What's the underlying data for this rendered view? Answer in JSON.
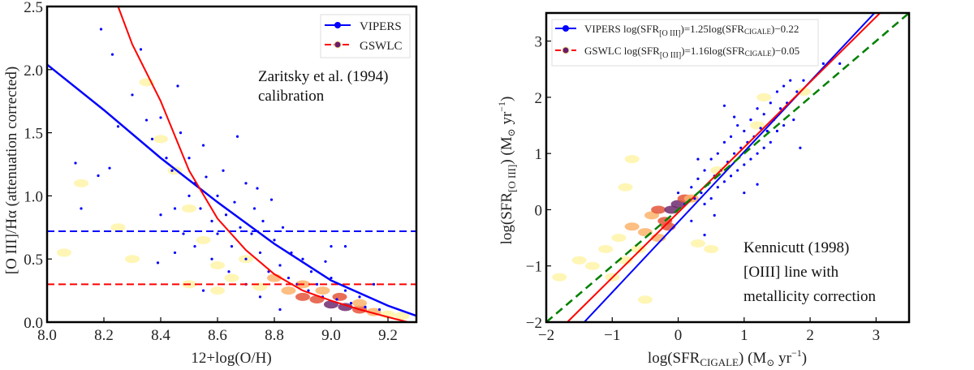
{
  "chart_data": [
    {
      "type": "scatter",
      "xlabel": "12+log(O/H)",
      "ylabel": "[O III]/Hα (attenuation corrected)",
      "xlim": [
        8.0,
        9.3
      ],
      "ylim": [
        0.0,
        2.5
      ],
      "xticks": [
        "8.0",
        "8.2",
        "8.4",
        "8.6",
        "8.8",
        "9.0",
        "9.2"
      ],
      "yticks": [
        "0.0",
        "0.5",
        "1.0",
        "1.5",
        "2.0",
        "2.5"
      ],
      "grid": false,
      "legend_position": "top-right",
      "annotation": [
        "Zaritsky et al. (1994)",
        "calibration"
      ],
      "series": [
        {
          "name": "VIPERS",
          "color": "#0000ff",
          "kind": "points",
          "points": [
            [
              8.19,
              2.32
            ],
            [
              8.23,
              2.12
            ],
            [
              8.33,
              2.16
            ],
            [
              8.1,
              1.26
            ],
            [
              8.12,
              0.9
            ],
            [
              8.18,
              1.16
            ],
            [
              8.22,
              1.22
            ],
            [
              8.25,
              1.55
            ],
            [
              8.3,
              1.8
            ],
            [
              8.35,
              1.6
            ],
            [
              8.37,
              1.45
            ],
            [
              8.4,
              1.62
            ],
            [
              8.42,
              1.3
            ],
            [
              8.44,
              1.2
            ],
            [
              8.46,
              1.87
            ],
            [
              8.47,
              1.5
            ],
            [
              8.5,
              1.0
            ],
            [
              8.5,
              1.3
            ],
            [
              8.52,
              1.1
            ],
            [
              8.54,
              0.9
            ],
            [
              8.55,
              1.4
            ],
            [
              8.56,
              1.15
            ],
            [
              8.58,
              0.8
            ],
            [
              8.6,
              1.0
            ],
            [
              8.6,
              0.7
            ],
            [
              8.62,
              1.2
            ],
            [
              8.63,
              0.85
            ],
            [
              8.65,
              0.6
            ],
            [
              8.66,
              0.95
            ],
            [
              8.68,
              0.75
            ],
            [
              8.7,
              1.1
            ],
            [
              8.7,
              0.5
            ],
            [
              8.72,
              0.7
            ],
            [
              8.73,
              0.9
            ],
            [
              8.75,
              0.55
            ],
            [
              8.76,
              0.8
            ],
            [
              8.78,
              0.4
            ],
            [
              8.8,
              0.65
            ],
            [
              8.82,
              0.45
            ],
            [
              8.83,
              0.75
            ],
            [
              8.85,
              0.35
            ],
            [
              8.86,
              0.55
            ],
            [
              8.88,
              0.3
            ],
            [
              8.9,
              0.5
            ],
            [
              8.92,
              0.25
            ],
            [
              8.93,
              0.4
            ],
            [
              8.95,
              0.3
            ],
            [
              8.97,
              0.2
            ],
            [
              9.0,
              0.35
            ],
            [
              9.02,
              0.18
            ],
            [
              9.05,
              0.25
            ],
            [
              9.07,
              0.15
            ],
            [
              9.1,
              0.2
            ],
            [
              9.12,
              0.12
            ],
            [
              9.15,
              0.3
            ],
            [
              9.17,
              0.1
            ],
            [
              8.45,
              0.9
            ],
            [
              8.48,
              0.7
            ],
            [
              8.52,
              0.6
            ],
            [
              8.4,
              0.85
            ],
            [
              8.58,
              0.5
            ],
            [
              8.64,
              0.4
            ],
            [
              8.7,
              0.3
            ],
            [
              8.55,
              0.25
            ],
            [
              8.75,
              0.2
            ],
            [
              8.45,
              0.55
            ],
            [
              8.39,
              0.47
            ],
            [
              8.82,
              0.1
            ],
            [
              9.0,
              0.6
            ],
            [
              8.67,
              1.47
            ],
            [
              8.74,
              1.06
            ],
            [
              8.79,
              0.97
            ],
            [
              8.98,
              0.48
            ],
            [
              9.05,
              0.6
            ]
          ]
        },
        {
          "name": "GSWLC",
          "kind": "density",
          "cells": [
            [
              8.06,
              0.55,
              1
            ],
            [
              8.12,
              1.1,
              1
            ],
            [
              8.25,
              0.75,
              1
            ],
            [
              8.3,
              0.5,
              1
            ],
            [
              8.35,
              1.9,
              1
            ],
            [
              8.4,
              1.45,
              1
            ],
            [
              8.45,
              1.2,
              1
            ],
            [
              8.5,
              0.9,
              1
            ],
            [
              8.55,
              0.65,
              1
            ],
            [
              8.6,
              0.45,
              1
            ],
            [
              8.65,
              0.35,
              1
            ],
            [
              8.7,
              0.5,
              1
            ],
            [
              8.75,
              0.28,
              1
            ],
            [
              8.8,
              0.35,
              2
            ],
            [
              8.85,
              0.25,
              2
            ],
            [
              8.9,
              0.2,
              3
            ],
            [
              8.95,
              0.18,
              3
            ],
            [
              9.0,
              0.14,
              4
            ],
            [
              9.05,
              0.12,
              4
            ],
            [
              9.1,
              0.1,
              3
            ],
            [
              9.15,
              0.08,
              2
            ],
            [
              9.2,
              0.06,
              1
            ],
            [
              9.25,
              0.05,
              1
            ],
            [
              8.9,
              0.3,
              2
            ],
            [
              8.97,
              0.25,
              2
            ],
            [
              9.03,
              0.2,
              3
            ],
            [
              9.1,
              0.15,
              2
            ],
            [
              8.6,
              0.25,
              1
            ],
            [
              8.5,
              0.3,
              1
            ]
          ]
        },
        {
          "name": "VIPERS fit",
          "color": "#0000ff",
          "kind": "line",
          "points": [
            [
              8.0,
              2.04
            ],
            [
              8.2,
              1.68
            ],
            [
              8.4,
              1.3
            ],
            [
              8.6,
              0.95
            ],
            [
              8.8,
              0.62
            ],
            [
              9.0,
              0.33
            ],
            [
              9.2,
              0.13
            ],
            [
              9.3,
              0.05
            ]
          ]
        },
        {
          "name": "GSWLC fit",
          "color": "#ff0000",
          "kind": "line",
          "points": [
            [
              8.25,
              2.5
            ],
            [
              8.3,
              2.2
            ],
            [
              8.4,
              1.75
            ],
            [
              8.5,
              1.2
            ],
            [
              8.6,
              0.82
            ],
            [
              8.7,
              0.57
            ],
            [
              8.8,
              0.38
            ],
            [
              8.9,
              0.25
            ],
            [
              9.0,
              0.17
            ],
            [
              9.1,
              0.1
            ],
            [
              9.2,
              0.04
            ],
            [
              9.27,
              0.0
            ]
          ]
        },
        {
          "name": "VIPERS median",
          "color": "#0000ff",
          "kind": "hline",
          "y": 0.72
        },
        {
          "name": "GSWLC median",
          "color": "#ff0000",
          "kind": "hline",
          "y": 0.3
        }
      ],
      "legend": [
        {
          "label": "VIPERS",
          "color": "#0000ff",
          "marker": "#0000ff"
        },
        {
          "label": "GSWLC",
          "color": "#ff0000",
          "marker": "#6a1a6a"
        }
      ]
    },
    {
      "type": "scatter",
      "xlabel": {
        "pre": "log(SFR",
        "sub": "CIGALE",
        "post": ") (M",
        "sun": "⊙",
        "tail": " yr",
        "sup": "−1",
        "end": ")"
      },
      "ylabel": {
        "pre": "log(SFR",
        "sub": "[O III]",
        "post": ") (M",
        "sun": "⊙",
        "tail": " yr",
        "sup": "−1",
        "end": ")"
      },
      "xlim": [
        -2,
        3.5
      ],
      "ylim": [
        -2,
        3.5
      ],
      "xticks": [
        "−2",
        "−1",
        "0",
        "1",
        "2",
        "3"
      ],
      "yticks": [
        "−2",
        "−1",
        "0",
        "1",
        "2",
        "3"
      ],
      "grid": false,
      "legend_position": "top-left",
      "annotation": [
        "Kennicutt (1998)",
        "[OIII] line with",
        "metallicity correction"
      ],
      "series": [
        {
          "name": "VIPERS",
          "color": "#0000ff",
          "kind": "points",
          "points": [
            [
              0.0,
              0.3
            ],
            [
              0.1,
              0.1
            ],
            [
              0.2,
              0.4
            ],
            [
              0.25,
              0.2
            ],
            [
              0.3,
              0.55
            ],
            [
              0.35,
              0.3
            ],
            [
              0.4,
              0.7
            ],
            [
              0.4,
              0.1
            ],
            [
              0.45,
              0.45
            ],
            [
              0.5,
              0.9
            ],
            [
              0.5,
              0.2
            ],
            [
              0.55,
              0.6
            ],
            [
              0.6,
              0.4
            ],
            [
              0.6,
              1.0
            ],
            [
              0.65,
              0.7
            ],
            [
              0.7,
              0.5
            ],
            [
              0.7,
              1.2
            ],
            [
              0.75,
              0.85
            ],
            [
              0.8,
              0.6
            ],
            [
              0.8,
              1.3
            ],
            [
              0.85,
              1.0
            ],
            [
              0.9,
              0.7
            ],
            [
              0.9,
              1.5
            ],
            [
              0.95,
              1.1
            ],
            [
              1.0,
              0.8
            ],
            [
              1.0,
              1.4
            ],
            [
              1.05,
              1.2
            ],
            [
              1.1,
              0.9
            ],
            [
              1.1,
              1.6
            ],
            [
              1.15,
              1.3
            ],
            [
              1.2,
              1.0
            ],
            [
              1.2,
              1.8
            ],
            [
              1.25,
              1.45
            ],
            [
              1.3,
              1.1
            ],
            [
              1.3,
              1.7
            ],
            [
              1.35,
              1.4
            ],
            [
              1.4,
              1.9
            ],
            [
              1.4,
              1.2
            ],
            [
              1.45,
              1.6
            ],
            [
              1.5,
              2.1
            ],
            [
              1.5,
              1.4
            ],
            [
              1.55,
              1.8
            ],
            [
              1.6,
              1.5
            ],
            [
              1.6,
              2.2
            ],
            [
              1.65,
              1.9
            ],
            [
              1.7,
              2.3
            ],
            [
              1.75,
              1.6
            ],
            [
              1.8,
              2.1
            ],
            [
              1.85,
              1.1
            ],
            [
              1.9,
              2.3
            ],
            [
              2.2,
              2.6
            ],
            [
              2.45,
              2.6
            ],
            [
              0.4,
              -0.45
            ],
            [
              0.55,
              -0.1
            ],
            [
              0.7,
              1.85
            ],
            [
              1.0,
              0.3
            ],
            [
              1.2,
              0.45
            ],
            [
              0.3,
              0.9
            ],
            [
              0.2,
              -0.2
            ],
            [
              0.85,
              1.65
            ]
          ]
        },
        {
          "name": "GSWLC",
          "kind": "density",
          "cells": [
            [
              -1.8,
              -1.2,
              1
            ],
            [
              -1.5,
              -0.9,
              1
            ],
            [
              -1.3,
              -1.0,
              1
            ],
            [
              -1.1,
              -0.7,
              1
            ],
            [
              -1.0,
              -1.2,
              1
            ],
            [
              -0.9,
              -0.5,
              1
            ],
            [
              -0.8,
              -0.9,
              1
            ],
            [
              -0.7,
              -0.3,
              2
            ],
            [
              -0.6,
              -0.7,
              1
            ],
            [
              -0.5,
              -0.4,
              2
            ],
            [
              -0.4,
              -0.1,
              2
            ],
            [
              -0.3,
              -0.5,
              2
            ],
            [
              -0.3,
              0.0,
              3
            ],
            [
              -0.2,
              -0.2,
              3
            ],
            [
              -0.1,
              0.0,
              4
            ],
            [
              -0.15,
              -0.3,
              3
            ],
            [
              0.0,
              0.1,
              4
            ],
            [
              0.1,
              0.2,
              3
            ],
            [
              0.2,
              0.2,
              2
            ],
            [
              -0.5,
              -1.6,
              1
            ],
            [
              0.3,
              -0.6,
              1
            ],
            [
              0.5,
              -0.7,
              1
            ],
            [
              -0.8,
              0.4,
              1
            ],
            [
              -0.7,
              0.9,
              1
            ],
            [
              1.2,
              1.5,
              1
            ],
            [
              1.9,
              2.1,
              1
            ],
            [
              1.3,
              2.0,
              1
            ],
            [
              0.6,
              0.7,
              1
            ]
          ]
        },
        {
          "name": "VIPERS fit",
          "color": "#0000ff",
          "kind": "fitline",
          "slope": 1.25,
          "intercept": -0.22
        },
        {
          "name": "GSWLC fit",
          "color": "#ff0000",
          "kind": "fitline",
          "slope": 1.16,
          "intercept": -0.05
        },
        {
          "name": "one-to-one",
          "color": "#008000",
          "kind": "fitline",
          "slope": 1.0,
          "intercept": 0.0,
          "dashed": true
        }
      ],
      "legend": [
        {
          "survey": "VIPERS",
          "eq_pre": " log(SFR",
          "eq_sub1": "[O III]",
          "eq_mid": ")=1.25log(SFR",
          "eq_sub2": "CIGALE",
          "eq_post": ")−0.22",
          "color": "#0000ff",
          "marker": "#0000ff"
        },
        {
          "survey": "GSWLC",
          "eq_pre": " log(SFR",
          "eq_sub1": "[O III]",
          "eq_mid": ")=1.16log(SFR",
          "eq_sub2": "CIGALE",
          "eq_post": ")−0.05",
          "color": "#ff0000",
          "marker": "#6a1a6a"
        }
      ]
    }
  ]
}
